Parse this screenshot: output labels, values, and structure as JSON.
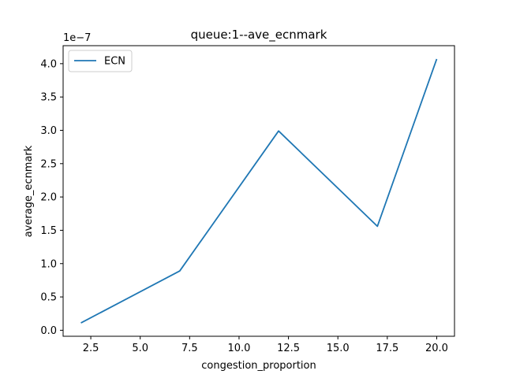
{
  "chart_data": {
    "type": "line",
    "title": "queue:1--ave_ecnmark",
    "xlabel": "congestion_proportion",
    "ylabel": "average_ecnmark",
    "y_offset_label": "1e−7",
    "x": [
      2,
      7,
      12,
      17,
      20
    ],
    "series": [
      {
        "name": "ECN",
        "color": "#1f77b4",
        "values": [
          0.11,
          0.89,
          2.99,
          1.56,
          4.07
        ]
      }
    ],
    "xlim": [
      1.1,
      20.9
    ],
    "ylim": [
      -0.09,
      4.27
    ],
    "x_ticks": [
      {
        "value": 2.5,
        "label": "2.5"
      },
      {
        "value": 5.0,
        "label": "5.0"
      },
      {
        "value": 7.5,
        "label": "7.5"
      },
      {
        "value": 10.0,
        "label": "10.0"
      },
      {
        "value": 12.5,
        "label": "12.5"
      },
      {
        "value": 15.0,
        "label": "15.0"
      },
      {
        "value": 17.5,
        "label": "17.5"
      },
      {
        "value": 20.0,
        "label": "20.0"
      }
    ],
    "y_ticks": [
      {
        "value": 0.0,
        "label": "0.0"
      },
      {
        "value": 0.5,
        "label": "0.5"
      },
      {
        "value": 1.0,
        "label": "1.0"
      },
      {
        "value": 1.5,
        "label": "1.5"
      },
      {
        "value": 2.0,
        "label": "2.0"
      },
      {
        "value": 2.5,
        "label": "2.5"
      },
      {
        "value": 3.0,
        "label": "3.0"
      },
      {
        "value": 3.5,
        "label": "3.5"
      },
      {
        "value": 4.0,
        "label": "4.0"
      }
    ],
    "grid": false,
    "legend_position": "top-left"
  }
}
